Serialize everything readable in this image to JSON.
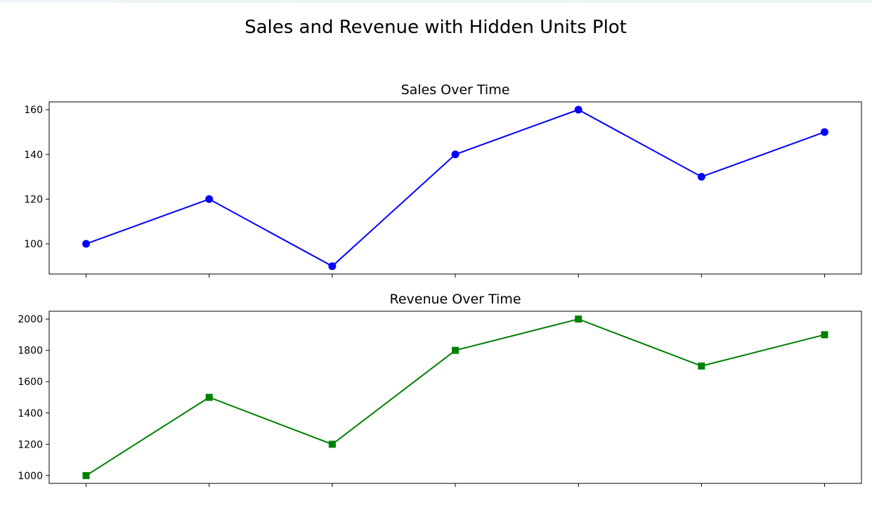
{
  "title": "Sales and Revenue with Hidden Units Plot",
  "chart_data": [
    {
      "type": "line",
      "title": "Sales Over Time",
      "x": [
        0,
        1,
        2,
        3,
        4,
        5,
        6
      ],
      "xlim": [
        -0.3,
        6.3
      ],
      "x_tick_labels_hidden": true,
      "ylim": [
        86.5,
        163.5
      ],
      "yticks": [
        100,
        120,
        140,
        160
      ],
      "series": [
        {
          "values": [
            100,
            120,
            90,
            140,
            160,
            130,
            150
          ],
          "color": "#0000ff",
          "marker": "circle"
        }
      ],
      "grid": false
    },
    {
      "type": "line",
      "title": "Revenue Over Time",
      "x": [
        0,
        1,
        2,
        3,
        4,
        5,
        6
      ],
      "xlim": [
        -0.3,
        6.3
      ],
      "x_tick_labels_hidden": true,
      "ylim": [
        950,
        2050
      ],
      "yticks": [
        1000,
        1200,
        1400,
        1600,
        1800,
        2000
      ],
      "series": [
        {
          "values": [
            1000,
            1500,
            1200,
            1800,
            2000,
            1700,
            1900
          ],
          "color": "#008000",
          "marker": "square"
        }
      ],
      "grid": false
    }
  ]
}
